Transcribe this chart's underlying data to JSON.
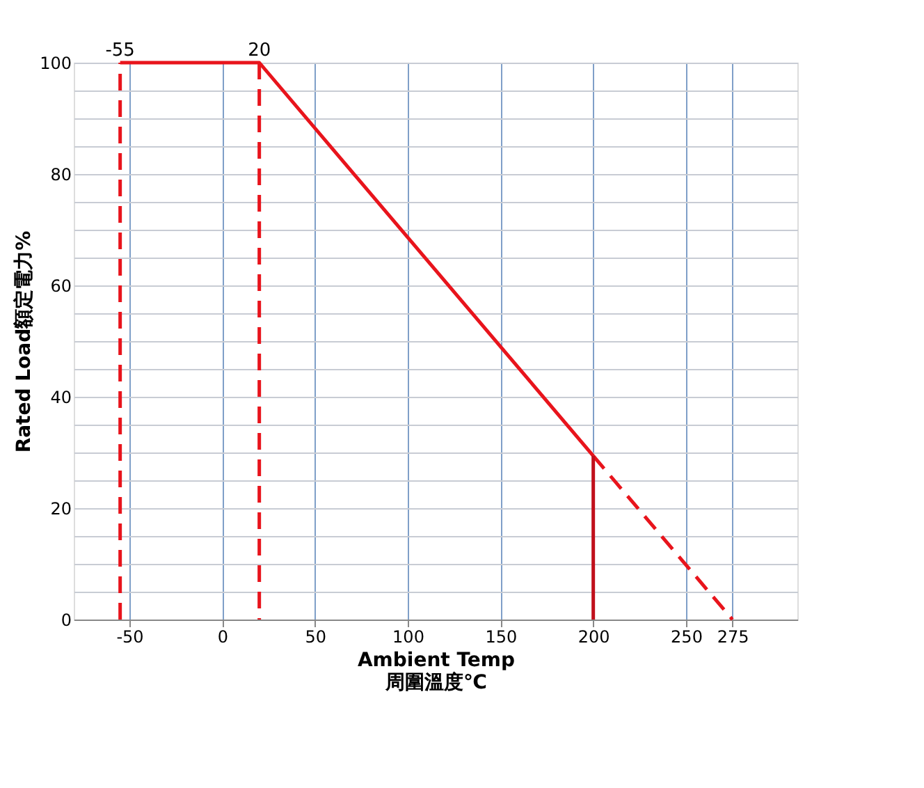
{
  "chart_data": {
    "type": "line",
    "xlabel": "Ambient Temp\n周圍溫度℃",
    "ylabel": "Rated Load額定電力%",
    "xlim": [
      -80,
      310
    ],
    "xticks": [
      -50,
      0,
      50,
      100,
      150,
      200,
      250,
      275
    ],
    "ylim": [
      0,
      100
    ],
    "yticks": [
      0,
      {
        "value": 5,
        "label": null
      },
      {
        "value": 10,
        "label": null
      },
      {
        "value": 15,
        "label": null
      },
      20,
      {
        "value": 25,
        "label": null
      },
      {
        "value": 30,
        "label": null
      },
      {
        "value": 35,
        "label": null
      },
      40,
      {
        "value": 45,
        "label": null
      },
      {
        "value": 50,
        "label": null
      },
      {
        "value": 55,
        "label": null
      },
      60,
      {
        "value": 65,
        "label": null
      },
      {
        "value": 70,
        "label": null
      },
      {
        "value": 75,
        "label": null
      },
      80,
      {
        "value": 85,
        "label": null
      },
      {
        "value": 90,
        "label": null
      },
      {
        "value": 95,
        "label": null
      },
      100
    ],
    "grid": true,
    "series": [
      {
        "color": "#e8141c",
        "line_style": "dashed",
        "x": [
          -55,
          -55
        ],
        "values": [
          0,
          100
        ]
      },
      {
        "color": "#e8141c",
        "line_style": "solid",
        "x": [
          -55,
          20,
          200
        ],
        "values": [
          100,
          100,
          29.4
        ]
      },
      {
        "color": "#e8141c",
        "line_style": "dashed",
        "x": [
          20,
          20
        ],
        "values": [
          100,
          0
        ]
      },
      {
        "color": "#e8141c",
        "line_style": "dashed",
        "x": [
          200,
          275
        ],
        "values": [
          29.4,
          0
        ]
      },
      {
        "color": "#c0101c",
        "line_style": "solid",
        "x": [
          200,
          200
        ],
        "values": [
          0,
          29.4
        ]
      }
    ],
    "annotations": [
      {
        "text": "-55",
        "x": -55,
        "y": 100
      },
      {
        "text": "20",
        "x": 20,
        "y": 100
      }
    ]
  }
}
